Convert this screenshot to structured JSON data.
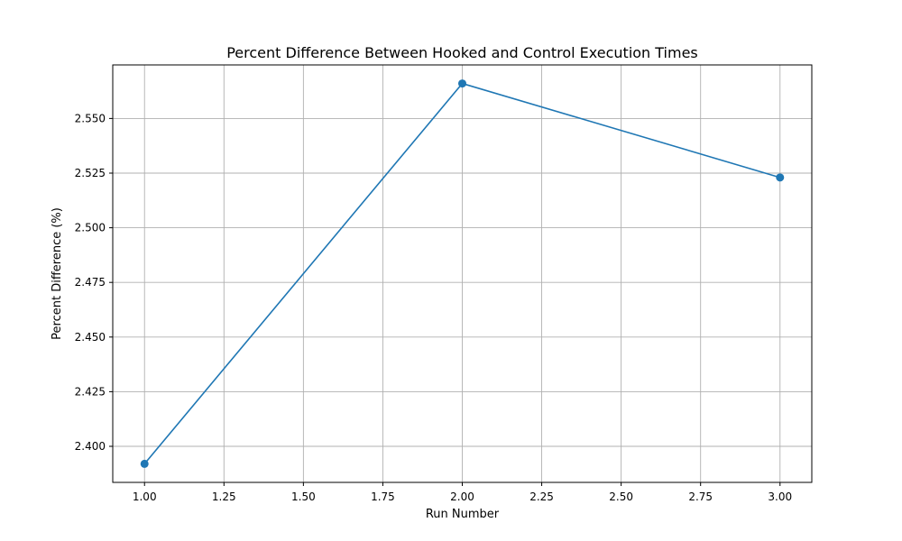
{
  "chart_data": {
    "type": "line",
    "title": "Percent Difference Between Hooked and Control Execution Times",
    "xlabel": "Run Number",
    "ylabel": "Percent Difference (%)",
    "grid": true,
    "xlim": [
      0.9,
      3.1
    ],
    "ylim": [
      2.3835,
      2.5745
    ],
    "x_ticks": [
      1.0,
      1.25,
      1.5,
      1.75,
      2.0,
      2.25,
      2.5,
      2.75,
      3.0
    ],
    "x_tick_labels": [
      "1.00",
      "1.25",
      "1.50",
      "1.75",
      "2.00",
      "2.25",
      "2.50",
      "2.75",
      "3.00"
    ],
    "y_ticks": [
      2.4,
      2.425,
      2.45,
      2.475,
      2.5,
      2.525,
      2.55
    ],
    "y_tick_labels": [
      "2.400",
      "2.425",
      "2.450",
      "2.475",
      "2.500",
      "2.525",
      "2.550"
    ],
    "series": [
      {
        "x": [
          1,
          2,
          3
        ],
        "values": [
          2.392,
          2.566,
          2.523
        ],
        "color": "#1f77b4",
        "marker": "circle"
      }
    ]
  }
}
